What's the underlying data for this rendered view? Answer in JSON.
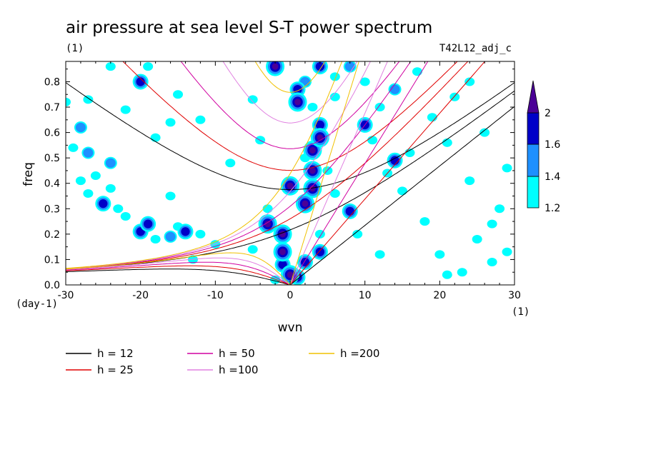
{
  "chart_data": {
    "type": "heatmap",
    "title": "air pressure at sea level S-T power spectrum",
    "subtitle_left": "(1)",
    "subtitle_right": "T42L12_adj_c",
    "xlabel": "wvn",
    "ylabel": "freq",
    "x_unit": "(1)",
    "y_unit": "(day-1)",
    "xlim": [
      -30,
      30
    ],
    "ylim": [
      0,
      0.88
    ],
    "x_ticks": [
      -30,
      -20,
      -10,
      0,
      10,
      20,
      30
    ],
    "x_tick_labels": [
      "-30",
      "-20",
      "-10",
      "0",
      "10",
      "20",
      "30"
    ],
    "y_ticks": [
      0,
      0.1,
      0.2,
      0.3,
      0.4,
      0.5,
      0.6,
      0.7,
      0.8
    ],
    "y_tick_labels": [
      "0.0",
      "0.1",
      "0.2",
      "0.3",
      "0.4",
      "0.5",
      "0.6",
      "0.7",
      "0.8"
    ],
    "colorbar": {
      "levels": [
        1.2,
        1.4,
        1.6,
        2
      ],
      "labels": [
        "1.2",
        "1.4",
        "1.6",
        "2"
      ],
      "colors": [
        "#00ffff",
        "#1e90ff",
        "#0000c8",
        "#4b0096"
      ]
    },
    "dispersion_curves": [
      {
        "label": "h = 12",
        "h": 12,
        "color": "#000000"
      },
      {
        "label": "h = 25",
        "h": 25,
        "color": "#e00000"
      },
      {
        "label": "h = 50",
        "h": 50,
        "color": "#d000a0"
      },
      {
        "label": "h =100",
        "h": 100,
        "color": "#e080e0"
      },
      {
        "label": "h =200",
        "h": 200,
        "color": "#f0c000"
      }
    ],
    "spectral_peaks": [
      {
        "k": -2,
        "f": 0.86,
        "level": 2
      },
      {
        "k": 1,
        "f": 0.72,
        "level": 2
      },
      {
        "k": 1,
        "f": 0.77,
        "level": 1.6
      },
      {
        "k": 2,
        "f": 0.8,
        "level": 1.4
      },
      {
        "k": 3,
        "f": 0.53,
        "level": 2
      },
      {
        "k": 4,
        "f": 0.58,
        "level": 2
      },
      {
        "k": 4,
        "f": 0.63,
        "level": 1.6
      },
      {
        "k": 3,
        "f": 0.45,
        "level": 2
      },
      {
        "k": 3,
        "f": 0.38,
        "level": 2
      },
      {
        "k": 2,
        "f": 0.32,
        "level": 2
      },
      {
        "k": 0,
        "f": 0.39,
        "level": 2
      },
      {
        "k": 0,
        "f": 0.04,
        "level": 2
      },
      {
        "k": -1,
        "f": 0.08,
        "level": 1.6
      },
      {
        "k": 1,
        "f": 0.03,
        "level": 1.6
      },
      {
        "k": -1,
        "f": 0.2,
        "level": 2
      },
      {
        "k": -3,
        "f": 0.24,
        "level": 2
      },
      {
        "k": -1,
        "f": 0.13,
        "level": 2
      },
      {
        "k": 4,
        "f": 0.13,
        "level": 1.6
      },
      {
        "k": 2,
        "f": 0.09,
        "level": 1.6
      },
      {
        "k": 8,
        "f": 0.29,
        "level": 1.6
      },
      {
        "k": 10,
        "f": 0.63,
        "level": 1.6
      },
      {
        "k": 14,
        "f": 0.49,
        "level": 1.6
      },
      {
        "k": 4,
        "f": 0.86,
        "level": 1.6
      },
      {
        "k": 8,
        "f": 0.86,
        "level": 1.4
      },
      {
        "k": 14,
        "f": 0.77,
        "level": 1.4
      },
      {
        "k": -20,
        "f": 0.8,
        "level": 1.6
      },
      {
        "k": -28,
        "f": 0.62,
        "level": 1.4
      },
      {
        "k": -27,
        "f": 0.52,
        "level": 1.4
      },
      {
        "k": -24,
        "f": 0.48,
        "level": 1.4
      },
      {
        "k": -25,
        "f": 0.32,
        "level": 1.6
      },
      {
        "k": -20,
        "f": 0.21,
        "level": 1.6
      },
      {
        "k": -19,
        "f": 0.24,
        "level": 1.6
      },
      {
        "k": -14,
        "f": 0.21,
        "level": 1.6
      },
      {
        "k": -16,
        "f": 0.19,
        "level": 1.4
      },
      {
        "k": 3,
        "f": 0.7,
        "level": 1.2
      },
      {
        "k": 5,
        "f": 0.45,
        "level": 1.2
      },
      {
        "k": 6,
        "f": 0.36,
        "level": 1.2
      },
      {
        "k": 4,
        "f": 0.2,
        "level": 1.2
      },
      {
        "k": -3,
        "f": 0.3,
        "level": 1.2
      },
      {
        "k": -5,
        "f": 0.14,
        "level": 1.2
      },
      {
        "k": -2,
        "f": 0.02,
        "level": 1.2
      },
      {
        "k": 2,
        "f": 0.5,
        "level": 1.2
      },
      {
        "k": 6,
        "f": 0.74,
        "level": 1.2
      },
      {
        "k": 11,
        "f": 0.57,
        "level": 1.2
      },
      {
        "k": 12,
        "f": 0.7,
        "level": 1.2
      },
      {
        "k": 13,
        "f": 0.44,
        "level": 1.2
      },
      {
        "k": 15,
        "f": 0.37,
        "level": 1.2
      },
      {
        "k": 9,
        "f": 0.2,
        "level": 1.2
      },
      {
        "k": 12,
        "f": 0.12,
        "level": 1.2
      },
      {
        "k": 16,
        "f": 0.52,
        "level": 1.2
      },
      {
        "k": 19,
        "f": 0.66,
        "level": 1.2
      },
      {
        "k": 22,
        "f": 0.74,
        "level": 1.2
      },
      {
        "k": 24,
        "f": 0.8,
        "level": 1.2
      },
      {
        "k": 18,
        "f": 0.25,
        "level": 1.2
      },
      {
        "k": 20,
        "f": 0.12,
        "level": 1.2
      },
      {
        "k": 23,
        "f": 0.05,
        "level": 1.2
      },
      {
        "k": 27,
        "f": 0.09,
        "level": 1.2
      },
      {
        "k": 29,
        "f": 0.13,
        "level": 1.2
      },
      {
        "k": 28,
        "f": 0.3,
        "level": 1.2
      },
      {
        "k": 29,
        "f": 0.46,
        "level": 1.2
      },
      {
        "k": 25,
        "f": 0.18,
        "level": 1.2
      },
      {
        "k": 21,
        "f": 0.04,
        "level": 1.2
      },
      {
        "k": -30,
        "f": 0.72,
        "level": 1.2
      },
      {
        "k": -29,
        "f": 0.54,
        "level": 1.2
      },
      {
        "k": -26,
        "f": 0.43,
        "level": 1.2
      },
      {
        "k": -28,
        "f": 0.41,
        "level": 1.2
      },
      {
        "k": -24,
        "f": 0.38,
        "level": 1.2
      },
      {
        "k": -27,
        "f": 0.36,
        "level": 1.2
      },
      {
        "k": -23,
        "f": 0.3,
        "level": 1.2
      },
      {
        "k": -22,
        "f": 0.27,
        "level": 1.2
      },
      {
        "k": -18,
        "f": 0.18,
        "level": 1.2
      },
      {
        "k": -15,
        "f": 0.23,
        "level": 1.2
      },
      {
        "k": -12,
        "f": 0.2,
        "level": 1.2
      },
      {
        "k": -13,
        "f": 0.1,
        "level": 1.2
      },
      {
        "k": -10,
        "f": 0.16,
        "level": 1.2
      },
      {
        "k": -16,
        "f": 0.35,
        "level": 1.2
      },
      {
        "k": -18,
        "f": 0.58,
        "level": 1.2
      },
      {
        "k": -16,
        "f": 0.64,
        "level": 1.2
      },
      {
        "k": -12,
        "f": 0.65,
        "level": 1.2
      },
      {
        "k": -15,
        "f": 0.75,
        "level": 1.2
      },
      {
        "k": -19,
        "f": 0.86,
        "level": 1.2
      },
      {
        "k": -24,
        "f": 0.86,
        "level": 1.2
      },
      {
        "k": -27,
        "f": 0.73,
        "level": 1.2
      },
      {
        "k": -22,
        "f": 0.69,
        "level": 1.2
      },
      {
        "k": -8,
        "f": 0.48,
        "level": 1.2
      },
      {
        "k": -5,
        "f": 0.73,
        "level": 1.2
      },
      {
        "k": -4,
        "f": 0.57,
        "level": 1.2
      },
      {
        "k": 6,
        "f": 0.82,
        "level": 1.2
      },
      {
        "k": 10,
        "f": 0.8,
        "level": 1.2
      },
      {
        "k": 17,
        "f": 0.84,
        "level": 1.2
      },
      {
        "k": 21,
        "f": 0.56,
        "level": 1.2
      },
      {
        "k": 26,
        "f": 0.6,
        "level": 1.2
      },
      {
        "k": 24,
        "f": 0.41,
        "level": 1.2
      },
      {
        "k": 27,
        "f": 0.24,
        "level": 1.2
      }
    ]
  }
}
